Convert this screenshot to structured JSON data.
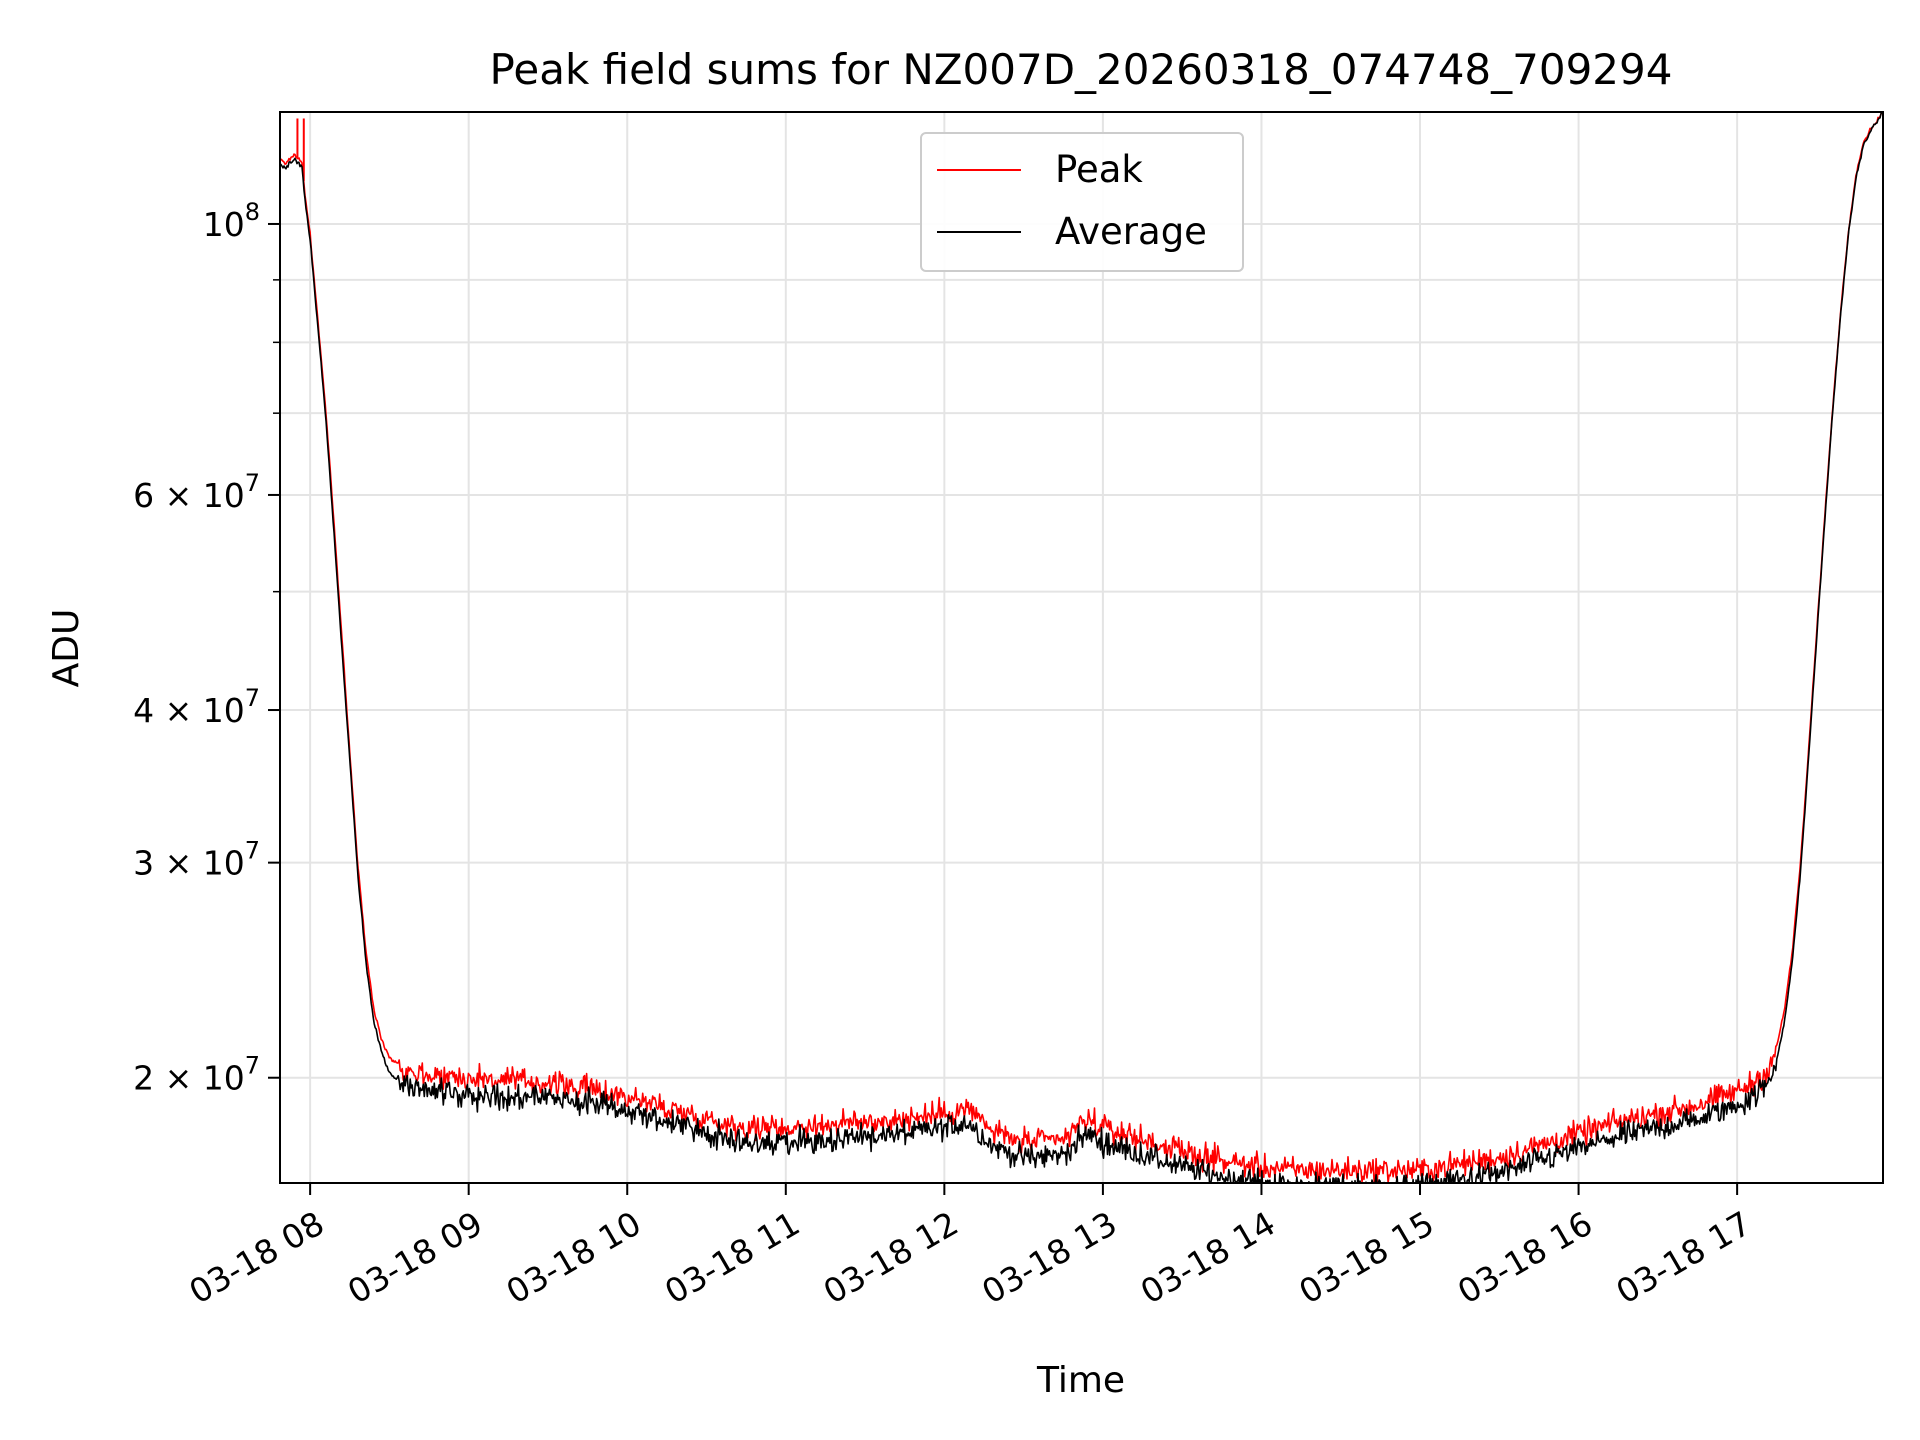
{
  "chart_data": {
    "type": "line",
    "title": "Peak field sums for NZ007D_20260318_074748_709294",
    "xlabel": "Time",
    "ylabel": "ADU",
    "x_unit": "hours (decimal, 2026-03-18)",
    "xlim": [
      7.81,
      17.92
    ],
    "ylim": [
      16400000,
      123500000
    ],
    "yscale": "log",
    "grid": true,
    "legend_position": "top-center",
    "x_ticks": [
      {
        "value": 8,
        "label": "03-18 08"
      },
      {
        "value": 9,
        "label": "03-18 09"
      },
      {
        "value": 10,
        "label": "03-18 10"
      },
      {
        "value": 11,
        "label": "03-18 11"
      },
      {
        "value": 12,
        "label": "03-18 12"
      },
      {
        "value": 13,
        "label": "03-18 13"
      },
      {
        "value": 14,
        "label": "03-18 14"
      },
      {
        "value": 15,
        "label": "03-18 15"
      },
      {
        "value": 16,
        "label": "03-18 16"
      },
      {
        "value": 17,
        "label": "03-18 17"
      }
    ],
    "y_major_ticks": [
      {
        "value": 100000000,
        "base": "10",
        "exp": "8",
        "mant": ""
      },
      {
        "value": 60000000,
        "base": "10",
        "exp": "7",
        "mant": "6 × "
      },
      {
        "value": 40000000,
        "base": "10",
        "exp": "7",
        "mant": "4 × "
      },
      {
        "value": 30000000,
        "base": "10",
        "exp": "7",
        "mant": "3 × "
      },
      {
        "value": 20000000,
        "base": "10",
        "exp": "7",
        "mant": "2 × "
      }
    ],
    "y_minor_ticks": [
      90000000,
      80000000,
      70000000,
      50000000
    ],
    "series": [
      {
        "name": "Peak",
        "color": "#ff0000",
        "noise": 0.035,
        "bias": 1.025,
        "spikes": [
          [
            7.92,
            122000000
          ],
          [
            7.96,
            122000000
          ]
        ],
        "x": [
          7.81,
          7.84,
          7.87,
          7.9,
          7.93,
          7.95,
          7.97,
          8.0,
          8.05,
          8.1,
          8.15,
          8.2,
          8.25,
          8.3,
          8.35,
          8.4,
          8.45,
          8.5,
          8.6,
          8.75,
          9.0,
          9.25,
          9.5,
          9.75,
          10.0,
          10.25,
          10.5,
          10.75,
          11.0,
          11.25,
          11.5,
          11.75,
          12.0,
          12.15,
          12.3,
          12.5,
          12.75,
          12.9,
          13.0,
          13.25,
          13.5,
          13.75,
          14.0,
          14.25,
          14.5,
          14.75,
          15.0,
          15.25,
          15.5,
          15.75,
          16.0,
          16.25,
          16.5,
          16.75,
          17.0,
          17.1,
          17.2,
          17.25,
          17.3,
          17.35,
          17.4,
          17.45,
          17.5,
          17.55,
          17.6,
          17.65,
          17.7,
          17.75,
          17.8,
          17.85,
          17.92
        ],
        "values": [
          113000000,
          112000000,
          113000000,
          114000000,
          113000000,
          112000000,
          105000000,
          98000000,
          83000000,
          70000000,
          57000000,
          46000000,
          37000000,
          30000000,
          25500000,
          22800000,
          21500000,
          20800000,
          20300000,
          20100000,
          20000000,
          19900000,
          19800000,
          19600000,
          19300000,
          18900000,
          18500000,
          18200000,
          18200000,
          18300000,
          18400000,
          18500000,
          18700000,
          18900000,
          18100000,
          17700000,
          17800000,
          18500000,
          18200000,
          17800000,
          17400000,
          17100000,
          16900000,
          16800000,
          16800000,
          16800000,
          16800000,
          17000000,
          17200000,
          17600000,
          18000000,
          18400000,
          18700000,
          19000000,
          19500000,
          19800000,
          20300000,
          21200000,
          22800000,
          25500000,
          30000000,
          37000000,
          46000000,
          57000000,
          70000000,
          84000000,
          98000000,
          110000000,
          117000000,
          120000000,
          123500000
        ]
      },
      {
        "name": "Average",
        "color": "#000000",
        "noise": 0.035,
        "bias": 0.99,
        "spikes": [],
        "x": [
          7.81,
          7.84,
          7.87,
          7.9,
          7.93,
          7.95,
          7.97,
          8.0,
          8.05,
          8.1,
          8.15,
          8.2,
          8.25,
          8.3,
          8.35,
          8.4,
          8.45,
          8.5,
          8.6,
          8.75,
          9.0,
          9.25,
          9.5,
          9.75,
          10.0,
          10.25,
          10.5,
          10.75,
          11.0,
          11.25,
          11.5,
          11.75,
          12.0,
          12.15,
          12.3,
          12.5,
          12.75,
          12.9,
          13.0,
          13.25,
          13.5,
          13.75,
          14.0,
          14.25,
          14.5,
          14.75,
          15.0,
          15.25,
          15.5,
          15.75,
          16.0,
          16.25,
          16.5,
          16.75,
          17.0,
          17.1,
          17.2,
          17.25,
          17.3,
          17.35,
          17.4,
          17.45,
          17.5,
          17.55,
          17.6,
          17.65,
          17.7,
          17.75,
          17.8,
          17.85,
          17.92
        ],
        "values": [
          112000000,
          111000000,
          112000000,
          113000000,
          112000000,
          111000000,
          104000000,
          97000000,
          82000000,
          69000000,
          56000000,
          45000000,
          36500000,
          29500000,
          25000000,
          22300000,
          21000000,
          20200000,
          19700000,
          19500000,
          19400000,
          19300000,
          19300000,
          19100000,
          18800000,
          18400000,
          18000000,
          17700000,
          17700000,
          17800000,
          17900000,
          18000000,
          18200000,
          18400000,
          17600000,
          17200000,
          17300000,
          18000000,
          17700000,
          17300000,
          16900000,
          16600000,
          16400000,
          16300000,
          16300000,
          16300000,
          16300000,
          16500000,
          16700000,
          17100000,
          17500000,
          17900000,
          18200000,
          18500000,
          19000000,
          19300000,
          19800000,
          20700000,
          22300000,
          25000000,
          29500000,
          36500000,
          45500000,
          56500000,
          69500000,
          83500000,
          97500000,
          109000000,
          116500000,
          119500000,
          123500000
        ]
      }
    ]
  }
}
